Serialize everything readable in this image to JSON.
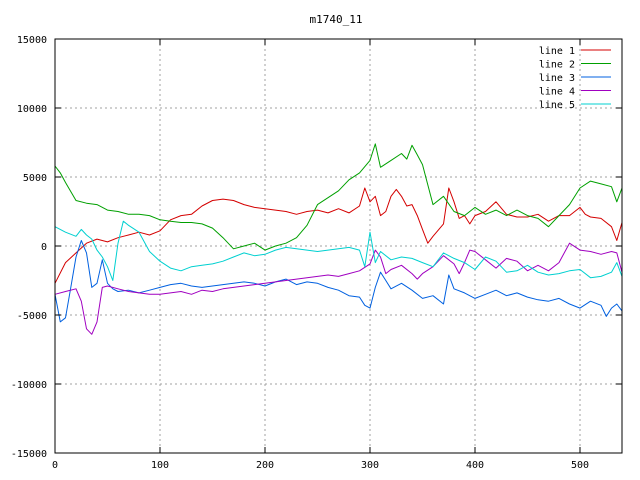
{
  "chart_data": {
    "type": "line",
    "title": "m1740_11",
    "xlabel": "",
    "ylabel": "",
    "xlim": [
      0,
      540
    ],
    "ylim": [
      -15000,
      15000
    ],
    "xticks": [
      0,
      100,
      200,
      300,
      400,
      500
    ],
    "yticks": [
      -15000,
      -10000,
      -5000,
      0,
      5000,
      10000,
      15000
    ],
    "grid": true,
    "legend_position": "top-right",
    "series": [
      {
        "name": "line 1",
        "color": "#d40000",
        "points": [
          [
            0,
            -2700
          ],
          [
            10,
            -1200
          ],
          [
            20,
            -500
          ],
          [
            30,
            200
          ],
          [
            40,
            500
          ],
          [
            50,
            300
          ],
          [
            60,
            600
          ],
          [
            70,
            800
          ],
          [
            80,
            1000
          ],
          [
            90,
            800
          ],
          [
            100,
            1100
          ],
          [
            110,
            1900
          ],
          [
            120,
            2200
          ],
          [
            130,
            2300
          ],
          [
            140,
            2900
          ],
          [
            150,
            3300
          ],
          [
            160,
            3400
          ],
          [
            170,
            3300
          ],
          [
            180,
            3000
          ],
          [
            190,
            2800
          ],
          [
            200,
            2700
          ],
          [
            210,
            2600
          ],
          [
            220,
            2500
          ],
          [
            230,
            2300
          ],
          [
            240,
            2500
          ],
          [
            250,
            2600
          ],
          [
            260,
            2400
          ],
          [
            270,
            2700
          ],
          [
            280,
            2400
          ],
          [
            290,
            2900
          ],
          [
            295,
            4200
          ],
          [
            300,
            3200
          ],
          [
            305,
            3600
          ],
          [
            310,
            2200
          ],
          [
            315,
            2500
          ],
          [
            320,
            3600
          ],
          [
            325,
            4100
          ],
          [
            330,
            3600
          ],
          [
            335,
            2900
          ],
          [
            340,
            3000
          ],
          [
            345,
            2200
          ],
          [
            350,
            1200
          ],
          [
            355,
            200
          ],
          [
            360,
            700
          ],
          [
            370,
            1600
          ],
          [
            375,
            4200
          ],
          [
            380,
            3200
          ],
          [
            385,
            2000
          ],
          [
            390,
            2200
          ],
          [
            395,
            1600
          ],
          [
            400,
            2200
          ],
          [
            410,
            2500
          ],
          [
            420,
            3200
          ],
          [
            430,
            2300
          ],
          [
            440,
            2100
          ],
          [
            450,
            2100
          ],
          [
            460,
            2300
          ],
          [
            470,
            1800
          ],
          [
            480,
            2200
          ],
          [
            490,
            2200
          ],
          [
            500,
            2800
          ],
          [
            505,
            2300
          ],
          [
            510,
            2100
          ],
          [
            520,
            2000
          ],
          [
            530,
            1400
          ],
          [
            535,
            400
          ],
          [
            540,
            1700
          ]
        ]
      },
      {
        "name": "line 2",
        "color": "#00a000",
        "points": [
          [
            0,
            5800
          ],
          [
            5,
            5300
          ],
          [
            10,
            4600
          ],
          [
            20,
            3300
          ],
          [
            30,
            3100
          ],
          [
            40,
            3000
          ],
          [
            50,
            2600
          ],
          [
            60,
            2500
          ],
          [
            70,
            2300
          ],
          [
            80,
            2300
          ],
          [
            90,
            2200
          ],
          [
            100,
            1900
          ],
          [
            110,
            1800
          ],
          [
            120,
            1700
          ],
          [
            130,
            1700
          ],
          [
            140,
            1600
          ],
          [
            150,
            1300
          ],
          [
            160,
            600
          ],
          [
            170,
            -200
          ],
          [
            180,
            0
          ],
          [
            190,
            200
          ],
          [
            200,
            -300
          ],
          [
            210,
            0
          ],
          [
            220,
            200
          ],
          [
            230,
            600
          ],
          [
            240,
            1500
          ],
          [
            250,
            3000
          ],
          [
            260,
            3500
          ],
          [
            270,
            4000
          ],
          [
            280,
            4800
          ],
          [
            290,
            5300
          ],
          [
            300,
            6200
          ],
          [
            305,
            7400
          ],
          [
            310,
            5700
          ],
          [
            320,
            6200
          ],
          [
            330,
            6700
          ],
          [
            335,
            6300
          ],
          [
            340,
            7300
          ],
          [
            345,
            6600
          ],
          [
            350,
            5900
          ],
          [
            360,
            3000
          ],
          [
            370,
            3600
          ],
          [
            380,
            2500
          ],
          [
            390,
            2200
          ],
          [
            400,
            2800
          ],
          [
            410,
            2300
          ],
          [
            420,
            2600
          ],
          [
            430,
            2200
          ],
          [
            440,
            2600
          ],
          [
            450,
            2200
          ],
          [
            460,
            2000
          ],
          [
            470,
            1400
          ],
          [
            480,
            2200
          ],
          [
            490,
            3000
          ],
          [
            500,
            4200
          ],
          [
            510,
            4700
          ],
          [
            520,
            4500
          ],
          [
            530,
            4300
          ],
          [
            535,
            3200
          ],
          [
            540,
            4200
          ]
        ]
      },
      {
        "name": "line 3",
        "color": "#0060e0",
        "points": [
          [
            0,
            -3500
          ],
          [
            5,
            -5500
          ],
          [
            10,
            -5200
          ],
          [
            15,
            -3000
          ],
          [
            20,
            -800
          ],
          [
            25,
            400
          ],
          [
            30,
            -500
          ],
          [
            35,
            -3000
          ],
          [
            40,
            -2700
          ],
          [
            45,
            -1000
          ],
          [
            50,
            -2700
          ],
          [
            55,
            -3100
          ],
          [
            60,
            -3300
          ],
          [
            70,
            -3200
          ],
          [
            80,
            -3400
          ],
          [
            90,
            -3200
          ],
          [
            100,
            -3000
          ],
          [
            110,
            -2800
          ],
          [
            120,
            -2700
          ],
          [
            130,
            -2900
          ],
          [
            140,
            -3000
          ],
          [
            150,
            -2900
          ],
          [
            160,
            -2800
          ],
          [
            170,
            -2700
          ],
          [
            180,
            -2600
          ],
          [
            190,
            -2700
          ],
          [
            200,
            -2900
          ],
          [
            210,
            -2600
          ],
          [
            220,
            -2400
          ],
          [
            230,
            -2800
          ],
          [
            240,
            -2600
          ],
          [
            250,
            -2700
          ],
          [
            260,
            -3000
          ],
          [
            270,
            -3200
          ],
          [
            280,
            -3600
          ],
          [
            290,
            -3700
          ],
          [
            295,
            -4300
          ],
          [
            300,
            -4500
          ],
          [
            305,
            -3000
          ],
          [
            310,
            -1900
          ],
          [
            315,
            -2500
          ],
          [
            320,
            -3100
          ],
          [
            330,
            -2700
          ],
          [
            340,
            -3200
          ],
          [
            350,
            -3800
          ],
          [
            360,
            -3600
          ],
          [
            370,
            -4200
          ],
          [
            375,
            -2100
          ],
          [
            380,
            -3100
          ],
          [
            390,
            -3400
          ],
          [
            400,
            -3800
          ],
          [
            410,
            -3500
          ],
          [
            420,
            -3200
          ],
          [
            430,
            -3600
          ],
          [
            440,
            -3400
          ],
          [
            450,
            -3700
          ],
          [
            460,
            -3900
          ],
          [
            470,
            -4000
          ],
          [
            480,
            -3800
          ],
          [
            490,
            -4200
          ],
          [
            500,
            -4500
          ],
          [
            510,
            -4000
          ],
          [
            520,
            -4300
          ],
          [
            525,
            -5100
          ],
          [
            530,
            -4500
          ],
          [
            535,
            -4200
          ],
          [
            540,
            -4700
          ]
        ]
      },
      {
        "name": "line 4",
        "color": "#a000c0",
        "points": [
          [
            0,
            -3500
          ],
          [
            10,
            -3300
          ],
          [
            20,
            -3100
          ],
          [
            25,
            -4000
          ],
          [
            30,
            -6000
          ],
          [
            35,
            -6400
          ],
          [
            40,
            -5500
          ],
          [
            45,
            -3000
          ],
          [
            50,
            -2900
          ],
          [
            60,
            -3100
          ],
          [
            70,
            -3300
          ],
          [
            80,
            -3400
          ],
          [
            90,
            -3500
          ],
          [
            100,
            -3500
          ],
          [
            110,
            -3400
          ],
          [
            120,
            -3300
          ],
          [
            130,
            -3500
          ],
          [
            140,
            -3200
          ],
          [
            150,
            -3300
          ],
          [
            160,
            -3100
          ],
          [
            170,
            -3000
          ],
          [
            180,
            -2900
          ],
          [
            190,
            -2800
          ],
          [
            200,
            -2700
          ],
          [
            210,
            -2600
          ],
          [
            220,
            -2500
          ],
          [
            230,
            -2400
          ],
          [
            240,
            -2300
          ],
          [
            250,
            -2200
          ],
          [
            260,
            -2100
          ],
          [
            270,
            -2200
          ],
          [
            280,
            -2000
          ],
          [
            290,
            -1800
          ],
          [
            300,
            -1300
          ],
          [
            305,
            -300
          ],
          [
            310,
            -800
          ],
          [
            315,
            -2000
          ],
          [
            320,
            -1700
          ],
          [
            330,
            -1400
          ],
          [
            340,
            -2000
          ],
          [
            345,
            -2400
          ],
          [
            350,
            -2000
          ],
          [
            360,
            -1500
          ],
          [
            370,
            -700
          ],
          [
            380,
            -1300
          ],
          [
            385,
            -2000
          ],
          [
            390,
            -1200
          ],
          [
            395,
            -300
          ],
          [
            400,
            -400
          ],
          [
            410,
            -1000
          ],
          [
            420,
            -1600
          ],
          [
            430,
            -900
          ],
          [
            440,
            -1100
          ],
          [
            450,
            -1800
          ],
          [
            460,
            -1400
          ],
          [
            470,
            -1800
          ],
          [
            480,
            -1200
          ],
          [
            490,
            200
          ],
          [
            500,
            -300
          ],
          [
            510,
            -400
          ],
          [
            520,
            -600
          ],
          [
            530,
            -400
          ],
          [
            535,
            -500
          ],
          [
            540,
            -1900
          ]
        ]
      },
      {
        "name": "line 5",
        "color": "#00d0d0",
        "points": [
          [
            0,
            1400
          ],
          [
            10,
            1000
          ],
          [
            20,
            700
          ],
          [
            25,
            1200
          ],
          [
            30,
            800
          ],
          [
            35,
            500
          ],
          [
            40,
            -300
          ],
          [
            45,
            -800
          ],
          [
            50,
            -1500
          ],
          [
            55,
            -2500
          ],
          [
            60,
            200
          ],
          [
            65,
            1800
          ],
          [
            70,
            1500
          ],
          [
            80,
            1000
          ],
          [
            90,
            -400
          ],
          [
            100,
            -1100
          ],
          [
            110,
            -1600
          ],
          [
            120,
            -1800
          ],
          [
            130,
            -1500
          ],
          [
            140,
            -1400
          ],
          [
            150,
            -1300
          ],
          [
            160,
            -1100
          ],
          [
            170,
            -800
          ],
          [
            180,
            -500
          ],
          [
            190,
            -700
          ],
          [
            200,
            -600
          ],
          [
            210,
            -300
          ],
          [
            220,
            -100
          ],
          [
            230,
            -200
          ],
          [
            240,
            -300
          ],
          [
            250,
            -400
          ],
          [
            260,
            -300
          ],
          [
            270,
            -200
          ],
          [
            280,
            -100
          ],
          [
            290,
            -300
          ],
          [
            295,
            -1500
          ],
          [
            300,
            1000
          ],
          [
            305,
            -1200
          ],
          [
            310,
            -400
          ],
          [
            320,
            -1000
          ],
          [
            330,
            -800
          ],
          [
            340,
            -900
          ],
          [
            350,
            -1200
          ],
          [
            360,
            -1500
          ],
          [
            370,
            -500
          ],
          [
            380,
            -900
          ],
          [
            390,
            -1200
          ],
          [
            400,
            -1700
          ],
          [
            410,
            -800
          ],
          [
            420,
            -1100
          ],
          [
            430,
            -1900
          ],
          [
            440,
            -1800
          ],
          [
            450,
            -1400
          ],
          [
            460,
            -1900
          ],
          [
            470,
            -2100
          ],
          [
            480,
            -2000
          ],
          [
            490,
            -1800
          ],
          [
            500,
            -1700
          ],
          [
            510,
            -2300
          ],
          [
            520,
            -2200
          ],
          [
            530,
            -1900
          ],
          [
            535,
            -1200
          ],
          [
            540,
            -2200
          ]
        ]
      }
    ]
  }
}
